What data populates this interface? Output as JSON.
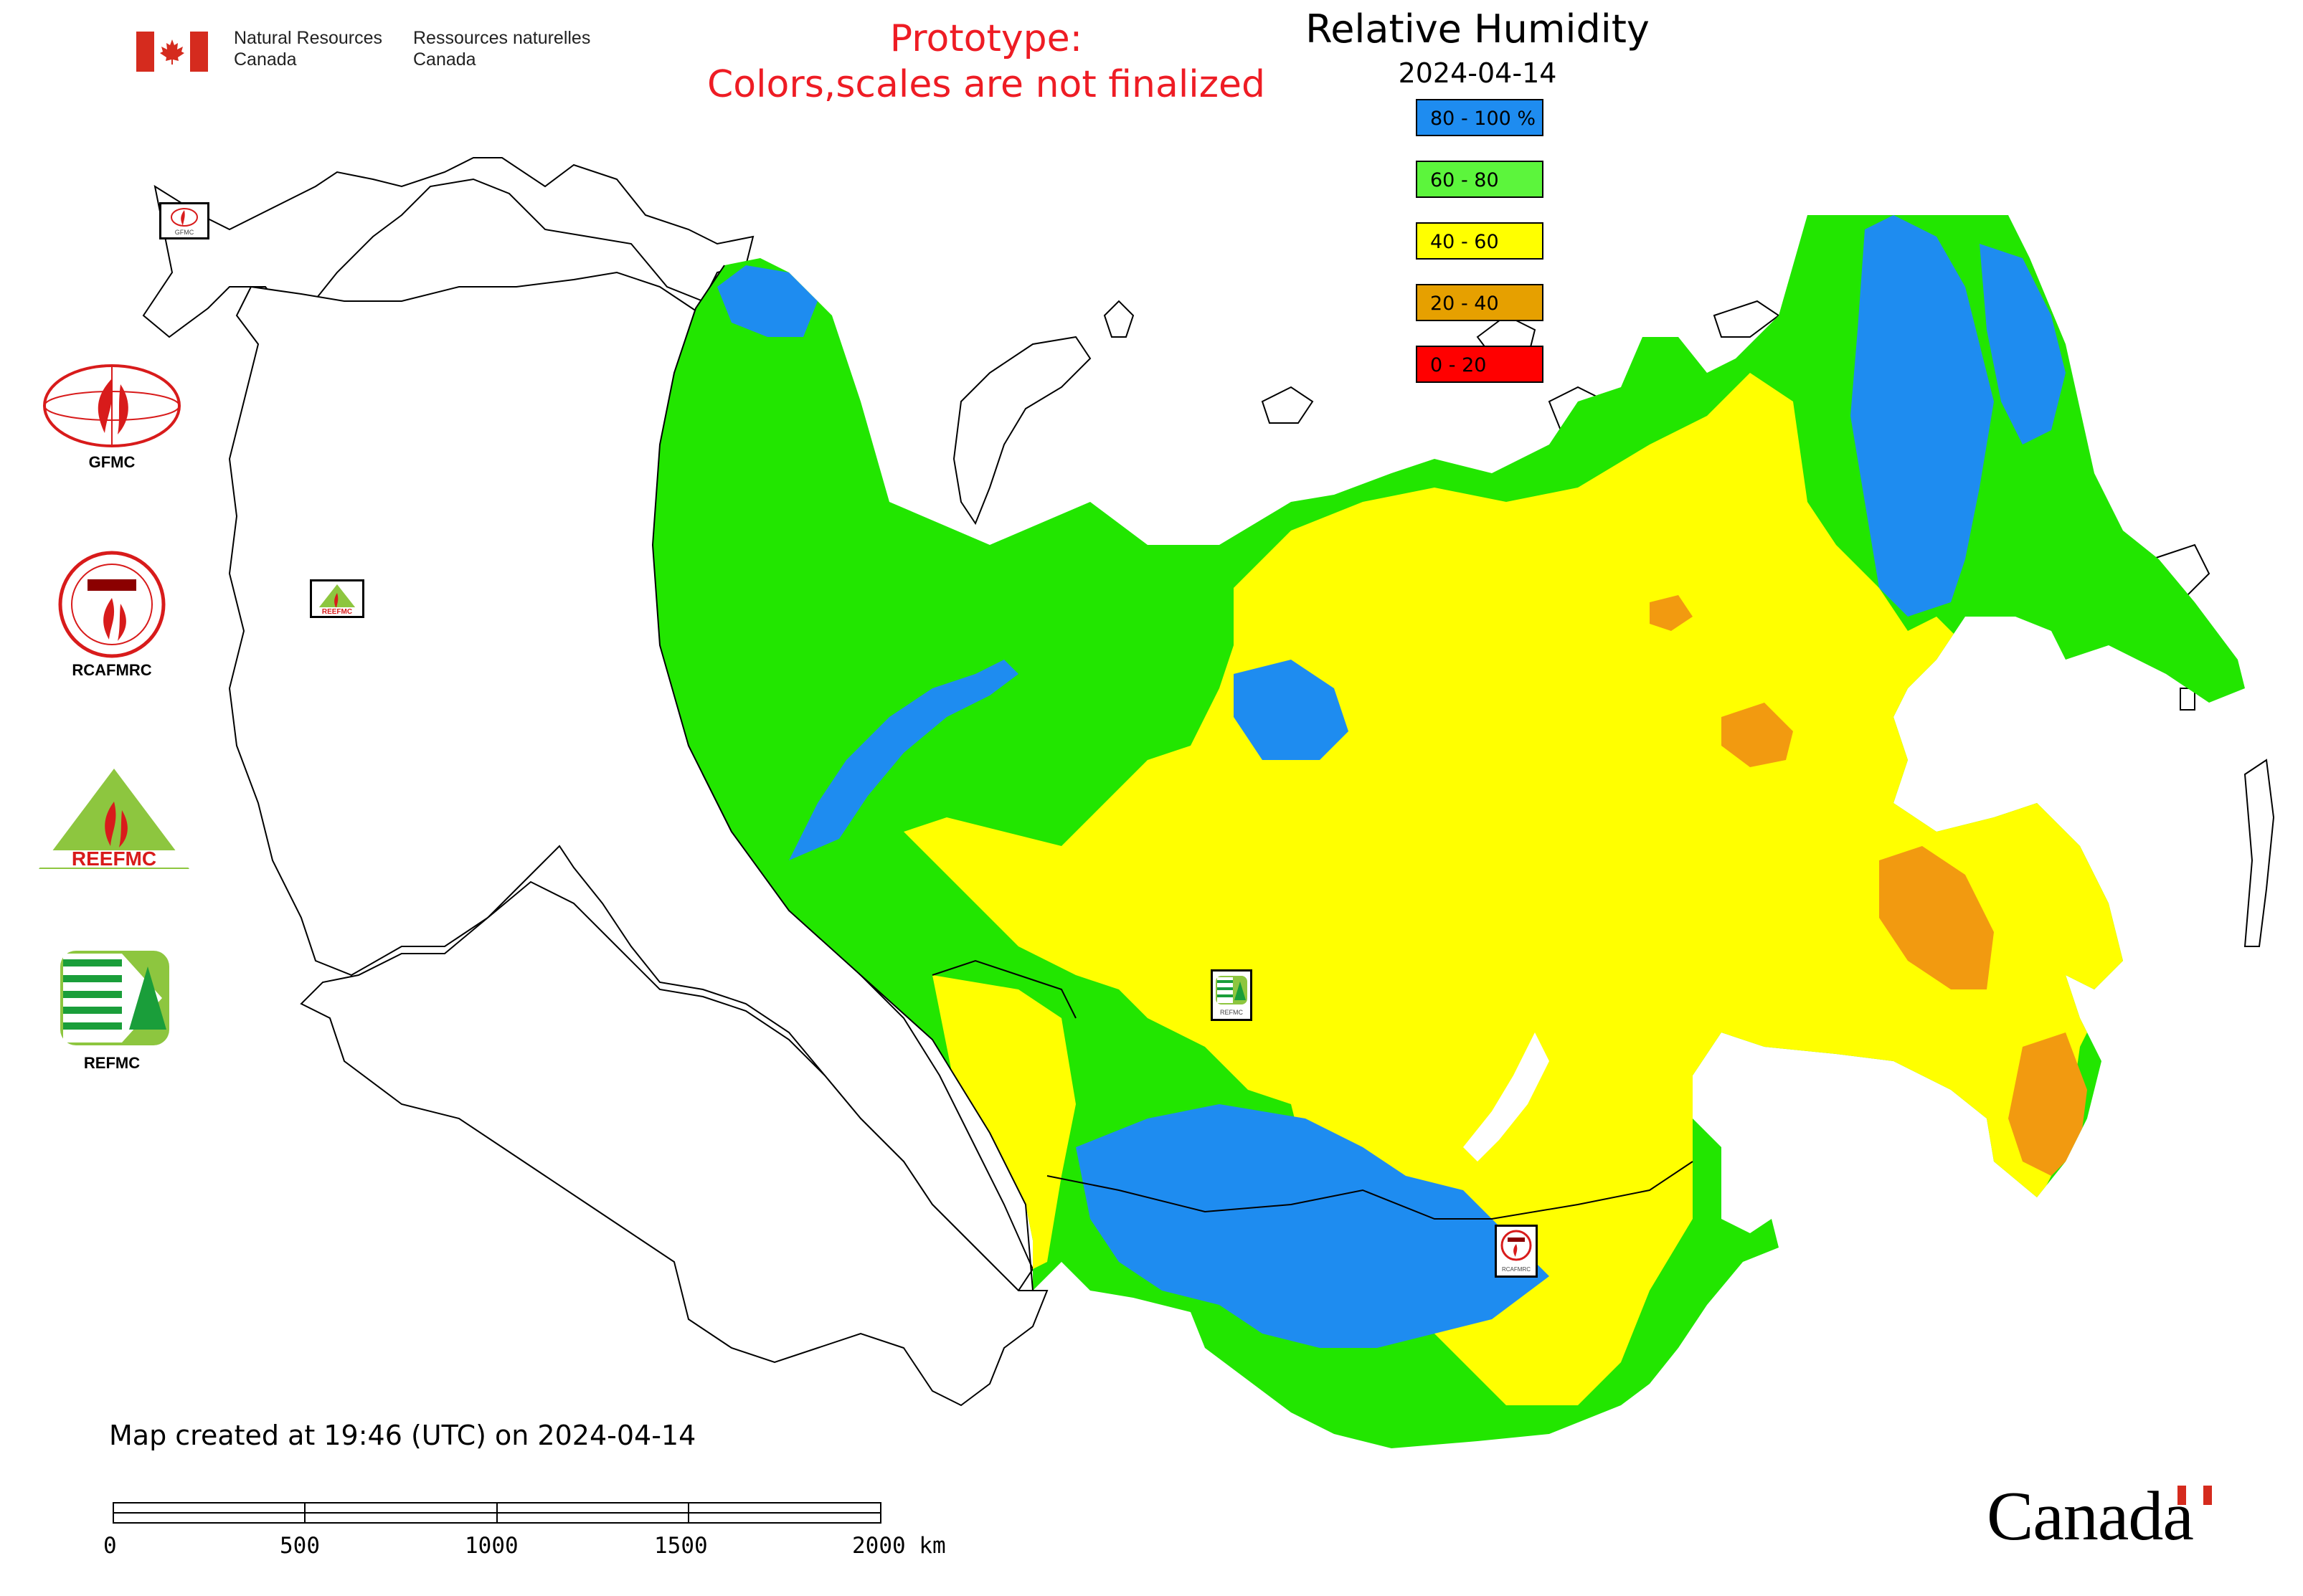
{
  "header": {
    "signature_en_line1": "Natural Resources",
    "signature_en_line2": "Canada",
    "signature_fr_line1": "Ressources naturelles",
    "signature_fr_line2": "Canada",
    "prototype_line1": "Prototype:",
    "prototype_line2": "Colors,scales are not finalized"
  },
  "map": {
    "title": "Relative Humidity",
    "date": "2024-04-14",
    "legend": [
      {
        "label": "80 - 100 %",
        "color": "#1e8cf0"
      },
      {
        "label": "60 - 80",
        "color": "#5cf53c"
      },
      {
        "label": "40 - 60",
        "color": "#ffff00"
      },
      {
        "label": "20 - 40",
        "color": "#e6a000"
      },
      {
        "label": "0 - 20",
        "color": "#ff0000"
      }
    ],
    "data_colors": {
      "very_humid": "#1e8cf0",
      "humid": "#22e600",
      "moderate": "#ffff00",
      "dry": "#f29a10",
      "very_dry": "#ff0000"
    }
  },
  "logos": [
    {
      "caption": "GFMC",
      "icon": "gfmc-logo"
    },
    {
      "caption": "RCAFMRC",
      "icon": "rcafmrc-logo"
    },
    {
      "caption": "",
      "icon": "reefmc-logo",
      "wordmark": "REEFMC"
    },
    {
      "caption": "REFMC",
      "icon": "refmc-logo"
    }
  ],
  "map_markers": [
    {
      "label": "GFMC",
      "icon": "gfmc-marker"
    },
    {
      "label": "REEFMC",
      "icon": "reefmc-marker"
    },
    {
      "label": "REFMC",
      "icon": "refmc-marker"
    },
    {
      "label": "RCAFMRC",
      "icon": "rcafmrc-marker"
    }
  ],
  "footer": {
    "created_note": "Map created at 19:46 (UTC) on 2024-04-14",
    "scale_ticks": [
      "0",
      "500",
      "1000",
      "1500",
      "2000 km"
    ],
    "wordmark": "Canada"
  },
  "flag_colors": {
    "red": "#d52b1e",
    "white": "#ffffff"
  }
}
